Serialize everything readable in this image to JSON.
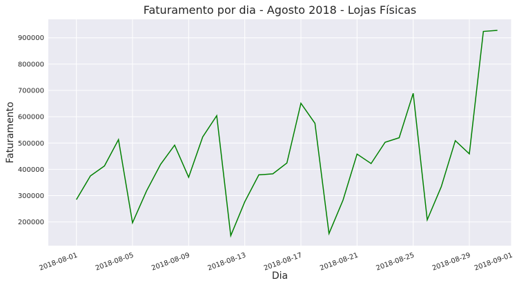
{
  "chart_data": {
    "type": "line",
    "title": "Faturamento por dia - Agosto 2018 - Lojas Físicas",
    "xlabel": "Dia",
    "ylabel": "Faturamento",
    "x_type": "date",
    "xlim": [
      "2018-07-30",
      "2018-09-01"
    ],
    "ylim": [
      110000,
      970000
    ],
    "grid": true,
    "line_color": "#008000",
    "background_color": "#eaeaf2",
    "grid_color": "#ffffff",
    "x_ticks": [
      "2018-08-01",
      "2018-08-05",
      "2018-08-09",
      "2018-08-13",
      "2018-08-17",
      "2018-08-21",
      "2018-08-25",
      "2018-08-29",
      "2018-09-01"
    ],
    "y_ticks": [
      200000,
      300000,
      400000,
      500000,
      600000,
      700000,
      800000,
      900000
    ],
    "y_tick_labels": [
      "200000",
      "300000",
      "400000",
      "500000",
      "600000",
      "700000",
      "800000",
      "900000"
    ],
    "series": [
      {
        "x": [
          "2018-08-01",
          "2018-08-02",
          "2018-08-03",
          "2018-08-04",
          "2018-08-05",
          "2018-08-06",
          "2018-08-07",
          "2018-08-08",
          "2018-08-09",
          "2018-08-10",
          "2018-08-11",
          "2018-08-12",
          "2018-08-13",
          "2018-08-14",
          "2018-08-15",
          "2018-08-16",
          "2018-08-17",
          "2018-08-18",
          "2018-08-19",
          "2018-08-20",
          "2018-08-21",
          "2018-08-22",
          "2018-08-23",
          "2018-08-24",
          "2018-08-25",
          "2018-08-26",
          "2018-08-27",
          "2018-08-28",
          "2018-08-29",
          "2018-08-30",
          "2018-08-31"
        ],
        "values": [
          285000,
          375000,
          413000,
          513000,
          197000,
          318000,
          419000,
          492000,
          370000,
          523000,
          604000,
          148000,
          277000,
          379000,
          383000,
          424000,
          651000,
          575000,
          156000,
          283000,
          458000,
          422000,
          503000,
          520000,
          689000,
          208000,
          334000,
          509000,
          459000,
          924000,
          928000
        ]
      }
    ]
  }
}
